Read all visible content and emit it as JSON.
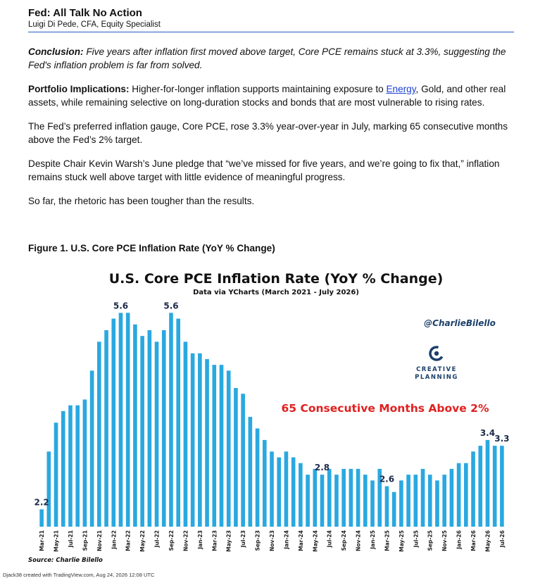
{
  "article": {
    "title": "Fed: All Talk No Action",
    "author": "Luigi Di Pede, CFA, Equity Specialist",
    "conclusion_label": "Conclusion:",
    "conclusion_text": " Five years after inflation first moved above target, Core PCE remains stuck at 3.3%, suggesting the Fed's inflation problem is far from solved.",
    "portfolio_label": "Portfolio Implications:",
    "portfolio_text_1": " Higher-for-longer inflation supports maintaining exposure to ",
    "portfolio_link": "Energy",
    "portfolio_text_2": ", Gold, and other real assets, while remaining selective on long-duration stocks and bonds that are most vulnerable to rising rates.",
    "para_1": "The Fed’s preferred inflation gauge, Core PCE, rose 3.3% year-over-year in July, marking 65 consecutive months above the Fed’s 2% target.",
    "para_2": "Despite Chair Kevin Warsh’s June pledge that “we’ve missed for five years, and we’re going to fix that,” inflation remains stuck well above target with little evidence of meaningful progress.",
    "para_3": "So far, the rhetoric has been tougher than the results.",
    "figure_caption": "Figure 1. U.S. Core PCE Inflation Rate (YoY % Change)"
  },
  "chart_data": {
    "type": "bar",
    "title": "U.S. Core PCE Inflation Rate (YoY % Change)",
    "subtitle": "Data via YCharts (March 2021 - July 2026)",
    "handle": "@CharlieBilello",
    "logo_text": [
      "CREATIVE",
      "PLANNING"
    ],
    "annotation": "65 Consecutive Months Above 2%",
    "source": "Source: Charlie Bilello",
    "ylim": [
      1.9,
      5.75
    ],
    "bar_color": "#2aa8e0",
    "annotation_color": "#e02020",
    "tick_labels": [
      "Mar-21",
      "May-21",
      "Jul-21",
      "Sep-21",
      "Nov-21",
      "Jan-22",
      "Mar-22",
      "May-22",
      "Jul-22",
      "Sep-22",
      "Nov-22",
      "Jan-23",
      "Mar-23",
      "May-23",
      "Jul-23",
      "Sep-23",
      "Nov-23",
      "Jan-24",
      "Mar-24",
      "May-24",
      "Jul-24",
      "Sep-24",
      "Nov-24",
      "Jan-25",
      "Mar-25",
      "May-25",
      "Jul-25",
      "Sep-25",
      "Nov-25",
      "Jan-26",
      "Mar-26",
      "May-26",
      "Jul-26"
    ],
    "values": [
      2.2,
      3.2,
      3.7,
      3.9,
      4.0,
      4.0,
      4.1,
      4.6,
      5.1,
      5.3,
      5.5,
      5.6,
      5.6,
      5.4,
      5.2,
      5.3,
      5.1,
      5.3,
      5.6,
      5.5,
      5.1,
      4.9,
      4.9,
      4.8,
      4.7,
      4.7,
      4.6,
      4.3,
      4.2,
      3.8,
      3.6,
      3.4,
      3.2,
      3.1,
      3.2,
      3.1,
      3.0,
      2.8,
      2.9,
      2.8,
      2.9,
      2.8,
      2.9,
      2.9,
      2.9,
      2.8,
      2.7,
      2.9,
      2.6,
      2.5,
      2.7,
      2.8,
      2.8,
      2.9,
      2.8,
      2.7,
      2.8,
      2.9,
      3.0,
      3.0,
      3.2,
      3.3,
      3.4,
      3.3,
      3.3
    ],
    "data_labels": [
      {
        "index": 0,
        "text": "2.2"
      },
      {
        "index": 11,
        "text": "5.6"
      },
      {
        "index": 18,
        "text": "5.6"
      },
      {
        "index": 39,
        "text": "2.8"
      },
      {
        "index": 48,
        "text": "2.6"
      },
      {
        "index": 62,
        "text": "3.4"
      },
      {
        "index": 64,
        "text": "3.3"
      }
    ]
  },
  "footer": {
    "credit": "Djack38 created with TradingView.com, Aug 24, 2026 12:08 UTC"
  }
}
